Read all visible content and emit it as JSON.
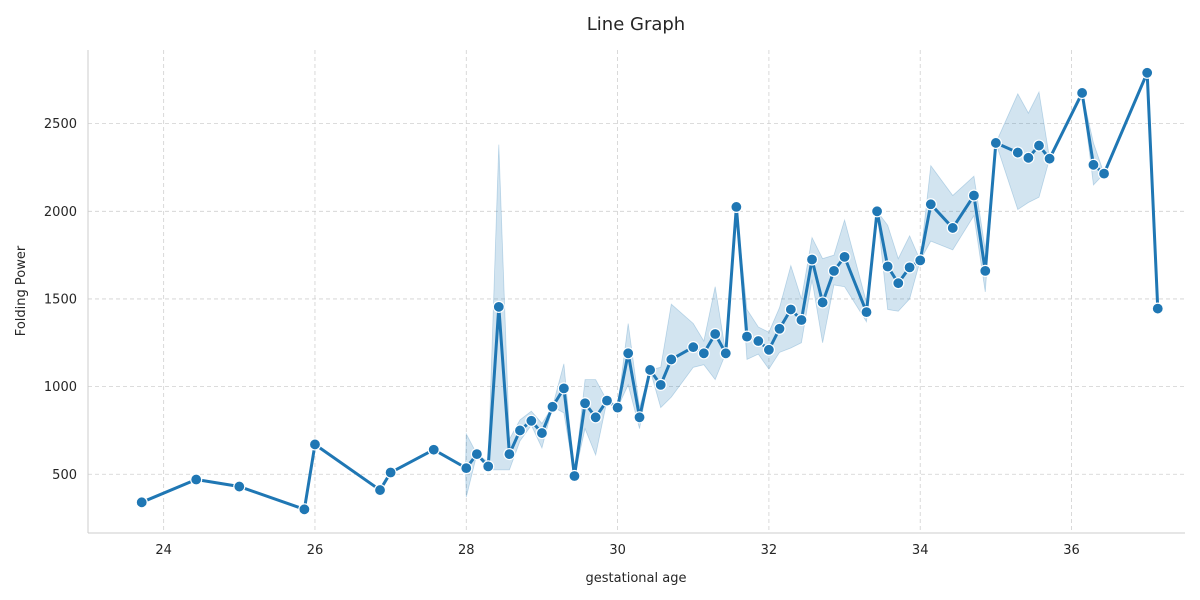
{
  "chart_data": {
    "type": "line",
    "title": "Line Graph",
    "xlabel": "gestational age",
    "ylabel": "Folding Power",
    "xlim": [
      23.0,
      37.5
    ],
    "ylim": [
      165,
      2920
    ],
    "xticks": [
      24,
      26,
      28,
      30,
      32,
      34,
      36
    ],
    "yticks": [
      500,
      1000,
      1500,
      2000,
      2500
    ],
    "grid": true,
    "legend": "none",
    "colors": {
      "line": "#1f77b4",
      "band": "#1f77b4",
      "grid": "#d0d0d0"
    },
    "series": [
      {
        "x": [
          23.71,
          24.43,
          25.0,
          25.86,
          26.0,
          26.86,
          27.0,
          27.57,
          28.0,
          28.14,
          28.29,
          28.43,
          28.57,
          28.71,
          28.86,
          29.0,
          29.14,
          29.29,
          29.43,
          29.57,
          29.71,
          29.86,
          30.0,
          30.14,
          30.29,
          30.43,
          30.57,
          30.71,
          31.0,
          31.14,
          31.29,
          31.43,
          31.57,
          31.71,
          31.86,
          32.0,
          32.14,
          32.29,
          32.43,
          32.57,
          32.71,
          32.86,
          33.0,
          33.29,
          33.43,
          33.57,
          33.71,
          33.86,
          34.0,
          34.14,
          34.43,
          34.71,
          34.86,
          35.0,
          35.29,
          35.43,
          35.57,
          35.71,
          36.14,
          36.29,
          36.43,
          37.0,
          37.14
        ],
        "y": [
          340,
          470,
          430,
          300,
          670,
          410,
          510,
          640,
          535,
          615,
          545,
          1455,
          615,
          750,
          805,
          735,
          885,
          990,
          490,
          905,
          825,
          920,
          880,
          1190,
          825,
          1095,
          1010,
          1155,
          1225,
          1190,
          1300,
          1190,
          2025,
          1285,
          1260,
          1210,
          1330,
          1440,
          1380,
          1725,
          1480,
          1660,
          1740,
          1425,
          2000,
          1685,
          1590,
          1680,
          1720,
          2040,
          1905,
          2090,
          1660,
          2390,
          2335,
          2305,
          2375,
          2300,
          2675,
          2265,
          2215,
          2790,
          1445
        ],
        "band_x": [
          27.99,
          28.0,
          28.14,
          28.29,
          28.43,
          28.57,
          28.71,
          28.86,
          29.0,
          29.14,
          29.29,
          29.43,
          29.57,
          29.71,
          29.86,
          30.0,
          30.14,
          30.29,
          30.43,
          30.57,
          30.71,
          31.0,
          31.14,
          31.29,
          31.43,
          31.57,
          31.71,
          31.86,
          32.0,
          32.14,
          32.29,
          32.43,
          32.57,
          32.71,
          32.86,
          33.0,
          33.29,
          33.43,
          33.57,
          33.71,
          33.86,
          34.0,
          34.14,
          34.43,
          34.71,
          34.86,
          35.0,
          35.29,
          35.43,
          35.57,
          35.71,
          36.14,
          36.29,
          36.43
        ],
        "band_lower": [
          535,
          370,
          615,
          525,
          525,
          525,
          690,
          780,
          650,
          885,
          850,
          490,
          760,
          610,
          920,
          880,
          1010,
          760,
          1095,
          880,
          940,
          1110,
          1125,
          1040,
          1190,
          2025,
          1155,
          1185,
          1100,
          1195,
          1220,
          1250,
          1610,
          1250,
          1580,
          1570,
          1370,
          2000,
          1440,
          1430,
          1500,
          1720,
          1830,
          1780,
          1975,
          1540,
          2390,
          2010,
          2050,
          2080,
          2300,
          2675,
          2150,
          2215
        ],
        "band_upper": [
          535,
          730,
          615,
          570,
          2380,
          700,
          810,
          860,
          790,
          885,
          1130,
          490,
          1040,
          1040,
          920,
          880,
          1360,
          880,
          1095,
          1110,
          1470,
          1360,
          1260,
          1570,
          1190,
          2025,
          1440,
          1340,
          1310,
          1450,
          1690,
          1500,
          1850,
          1730,
          1750,
          1950,
          1480,
          2000,
          1920,
          1730,
          1860,
          1720,
          2260,
          2090,
          2200,
          1780,
          2390,
          2670,
          2560,
          2680,
          2300,
          2675,
          2390,
          2215
        ]
      }
    ]
  }
}
